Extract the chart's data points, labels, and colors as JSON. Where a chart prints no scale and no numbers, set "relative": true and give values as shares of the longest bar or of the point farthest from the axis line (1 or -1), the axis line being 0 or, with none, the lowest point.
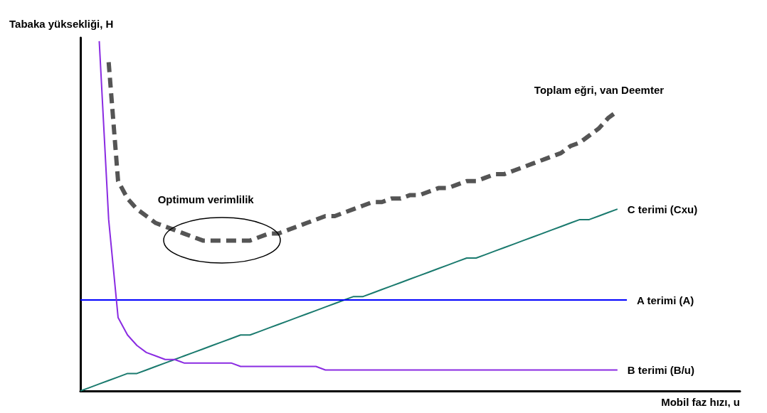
{
  "chart_data": {
    "type": "line",
    "relative": true,
    "xlabel": "Mobil faz hızı, u",
    "ylabel": "Tabaka yüksekliği, H",
    "annotations": [
      "Optimum verimlilik"
    ],
    "legend": false,
    "grid": false,
    "marker": "none",
    "categories": [
      null,
      null,
      null,
      null,
      null,
      null,
      null,
      null,
      null,
      null,
      null,
      null,
      null,
      null,
      null,
      null,
      null,
      null,
      null,
      null,
      null,
      null,
      null,
      null,
      null,
      null,
      null,
      null,
      null,
      null,
      null,
      null,
      null,
      null,
      null,
      null,
      null,
      null,
      null,
      null,
      null,
      null,
      null,
      null,
      null,
      null,
      null,
      null,
      null,
      null,
      null,
      null,
      null,
      null,
      null,
      null,
      null,
      null,
      null,
      null,
      null,
      null,
      null,
      null,
      null,
      null,
      null,
      null,
      null,
      null,
      null
    ],
    "series": [
      {
        "name": "Toplam eğri, van Deemter",
        "color": "#555555",
        "line_style": "dashed",
        "values": [
          null,
          null,
          null,
          0.94,
          0.6,
          0.55,
          0.52,
          0.5,
          0.48,
          0.47,
          0.46,
          0.45,
          0.44,
          0.43,
          0.43,
          0.43,
          0.43,
          0.43,
          0.43,
          0.44,
          0.45,
          0.45,
          0.46,
          0.47,
          0.48,
          0.49,
          0.5,
          0.5,
          0.51,
          0.52,
          0.53,
          0.54,
          0.54,
          0.55,
          0.55,
          0.56,
          0.56,
          0.57,
          0.58,
          0.58,
          0.59,
          0.6,
          0.6,
          0.61,
          0.62,
          0.62,
          0.63,
          0.64,
          0.65,
          0.66,
          0.67,
          0.68,
          0.7,
          0.71,
          0.73,
          0.75,
          0.78,
          0.8,
          null,
          null,
          null,
          null,
          null,
          null,
          null,
          null,
          null,
          null,
          null,
          null,
          null
        ]
      },
      {
        "name": "C terimi (Cxu)",
        "color": "#1a7a6e",
        "line_style": "solid",
        "values": [
          0,
          0.01,
          0.02,
          0.03,
          0.04,
          0.05,
          0.05,
          0.06,
          0.07,
          0.08,
          0.09,
          0.1,
          0.11,
          0.12,
          0.13,
          0.14,
          0.15,
          0.16,
          0.16,
          0.17,
          0.18,
          0.19,
          0.2,
          0.21,
          0.22,
          0.23,
          0.24,
          0.25,
          0.26,
          0.27,
          0.27,
          0.28,
          0.29,
          0.3,
          0.31,
          0.32,
          0.33,
          0.34,
          0.35,
          0.36,
          0.37,
          0.38,
          0.38,
          0.39,
          0.4,
          0.41,
          0.42,
          0.43,
          0.44,
          0.45,
          0.46,
          0.47,
          0.48,
          0.49,
          0.49,
          0.5,
          0.51,
          0.52,
          null,
          null,
          null,
          null,
          null,
          null,
          null,
          null,
          null,
          null,
          null,
          null,
          null
        ]
      },
      {
        "name": "A terimi (A)",
        "color": "#0000ff",
        "line_style": "solid",
        "values": [
          0.26,
          0.26,
          0.26,
          0.26,
          0.26,
          0.26,
          0.26,
          0.26,
          0.26,
          0.26,
          0.26,
          0.26,
          0.26,
          0.26,
          0.26,
          0.26,
          0.26,
          0.26,
          0.26,
          0.26,
          0.26,
          0.26,
          0.26,
          0.26,
          0.26,
          0.26,
          0.26,
          0.26,
          0.26,
          0.26,
          0.26,
          0.26,
          0.26,
          0.26,
          0.26,
          0.26,
          0.26,
          0.26,
          0.26,
          0.26,
          0.26,
          0.26,
          0.26,
          0.26,
          0.26,
          0.26,
          0.26,
          0.26,
          0.26,
          0.26,
          0.26,
          0.26,
          0.26,
          0.26,
          0.26,
          0.26,
          0.26,
          0.26,
          0.26,
          null,
          null,
          null,
          null,
          null,
          null,
          null,
          null,
          null,
          null,
          null,
          null
        ]
      },
      {
        "name": "B terimi (B/u)",
        "color": "#8a2be2",
        "line_style": "solid",
        "values": [
          null,
          null,
          1.0,
          0.49,
          0.21,
          0.16,
          0.13,
          0.11,
          0.1,
          0.09,
          0.09,
          0.08,
          0.08,
          0.08,
          0.08,
          0.08,
          0.08,
          0.07,
          0.07,
          0.07,
          0.07,
          0.07,
          0.07,
          0.07,
          0.07,
          0.07,
          0.06,
          0.06,
          0.06,
          0.06,
          0.06,
          0.06,
          0.06,
          0.06,
          0.06,
          0.06,
          0.06,
          0.06,
          0.06,
          0.06,
          0.06,
          0.06,
          0.06,
          0.06,
          0.06,
          0.06,
          0.06,
          0.06,
          0.06,
          0.06,
          0.06,
          0.06,
          0.06,
          0.06,
          0.06,
          0.06,
          0.06,
          0.06,
          null,
          null,
          null,
          null,
          null,
          null,
          null,
          null,
          null,
          null,
          null,
          null,
          null
        ]
      }
    ]
  }
}
